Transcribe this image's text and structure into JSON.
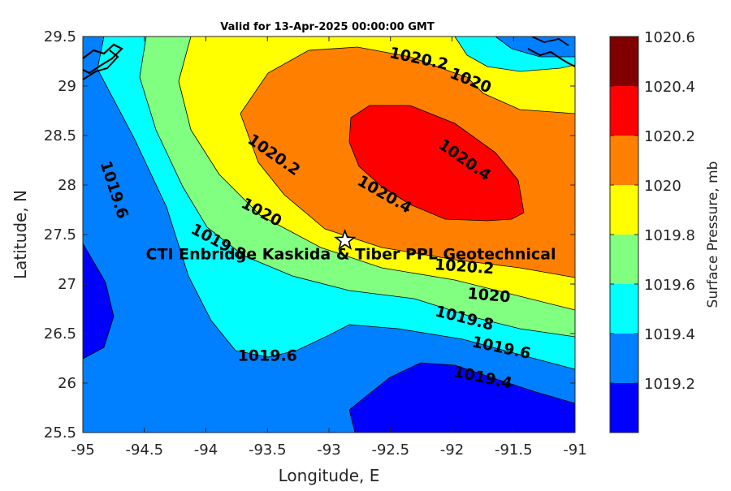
{
  "chart_data": {
    "type": "filled-contour",
    "title": "Valid for 13-Apr-2025 00:00:00 GMT",
    "xlabel": "Longitude, E",
    "ylabel": "Latitude, N",
    "xlim": [
      -95,
      -91
    ],
    "ylim": [
      25.5,
      29.5
    ],
    "x_ticks": [
      "-95",
      "-94.5",
      "-94",
      "-93.5",
      "-93",
      "-92.5",
      "-92",
      "-91.5",
      "-91"
    ],
    "y_ticks": [
      "29.5",
      "29",
      "28.5",
      "28",
      "27.5",
      "27",
      "26.5",
      "26",
      "25.5"
    ],
    "levels": [
      1019.2,
      1019.4,
      1019.6,
      1019.8,
      1020.0,
      1020.2,
      1020.4,
      1020.6
    ],
    "level_colors": [
      "#0000ff",
      "#0080ff",
      "#00ffff",
      "#80ff80",
      "#ffff00",
      "#ff8000",
      "#ff0000",
      "#800000"
    ],
    "contour_labels": [
      {
        "text": "1020.2",
        "lon": -92.27,
        "lat": 29.27
      },
      {
        "text": "1020",
        "lon": -91.85,
        "lat": 29.05
      },
      {
        "text": "1020.2",
        "lon": -93.45,
        "lat": 28.3
      },
      {
        "text": "1020.4",
        "lon": -91.9,
        "lat": 28.25
      },
      {
        "text": "1020.4",
        "lon": -92.55,
        "lat": 27.9
      },
      {
        "text": "1020",
        "lon": -93.55,
        "lat": 27.72
      },
      {
        "text": "1019.6",
        "lon": -94.75,
        "lat": 27.95
      },
      {
        "text": "1019.8",
        "lon": -93.9,
        "lat": 27.42
      },
      {
        "text": "1020.2",
        "lon": -91.9,
        "lat": 27.17
      },
      {
        "text": "1020",
        "lon": -91.7,
        "lat": 26.88
      },
      {
        "text": "1019.8",
        "lon": -91.9,
        "lat": 26.65
      },
      {
        "text": "1019.6",
        "lon": -93.5,
        "lat": 26.27
      },
      {
        "text": "1019.6",
        "lon": -91.6,
        "lat": 26.35
      },
      {
        "text": "1019.4",
        "lon": -91.75,
        "lat": 26.05
      }
    ],
    "site": {
      "name": "CTI Enbridge Kaskida & Tiber PPL Geotechnical",
      "lon": -92.87,
      "lat": 27.44,
      "marker": "star"
    },
    "colorbar": {
      "label": "Surface Pressure, mb",
      "ticks": [
        "1020.6",
        "1020.4",
        "1020.2",
        "1020",
        "1019.8",
        "1019.6",
        "1019.4",
        "1019.2"
      ]
    }
  }
}
